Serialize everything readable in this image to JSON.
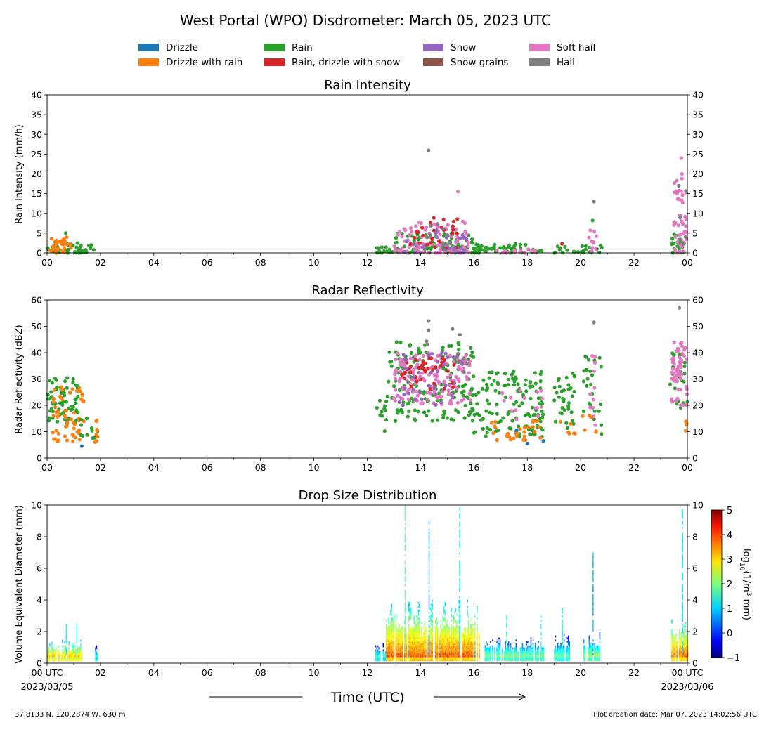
{
  "figure": {
    "title": "West Portal (WPO) Disdrometer: March 05, 2023 UTC",
    "footer_left": "37.8133 N, 120.2874 W, 630 m",
    "footer_right": "Plot creation date: Mar 07, 2023 14:02:56 UTC",
    "xlabel": "Time (UTC)",
    "date_start": "2023/03/05",
    "date_end": "2023/03/06",
    "colors": {
      "drizzle": "#1f77b4",
      "drizzle_with_rain": "#ff7f0e",
      "rain": "#2ca02c",
      "rain_drizzle_with_snow": "#d62728",
      "snow": "#9467bd",
      "snow_grains": "#8c564b",
      "soft_hail": "#e377c2",
      "hail": "#7f7f7f"
    }
  },
  "legend": {
    "placement": "top",
    "entries": [
      {
        "label": "Drizzle",
        "color": "#1f77b4"
      },
      {
        "label": "Drizzle with rain",
        "color": "#ff7f0e"
      },
      {
        "label": "Rain",
        "color": "#2ca02c"
      },
      {
        "label": "Rain, drizzle with snow",
        "color": "#d62728"
      },
      {
        "label": "Snow",
        "color": "#9467bd"
      },
      {
        "label": "Snow grains",
        "color": "#8c564b"
      },
      {
        "label": "Soft hail",
        "color": "#e377c2"
      },
      {
        "label": "Hail",
        "color": "#7f7f7f"
      }
    ]
  },
  "chart_data": [
    {
      "type": "scatter",
      "title": "Rain Intensity",
      "xlabel": "",
      "ylabel": "Rain Intensity (mm/h)",
      "xlim": [
        0,
        24
      ],
      "ylim": [
        0,
        40
      ],
      "yticks": [
        0,
        5,
        10,
        15,
        20,
        25,
        30,
        35,
        40
      ],
      "xtick_labels": [
        "00",
        "02",
        "04",
        "06",
        "08",
        "10",
        "12",
        "14",
        "16",
        "18",
        "20",
        "22",
        "00"
      ],
      "grid": false,
      "clusters": [
        {
          "series": "Rain",
          "x": [
            0.0,
            1.8
          ],
          "y": [
            0,
            2.5
          ],
          "n": 45
        },
        {
          "series": "Drizzle with rain",
          "x": [
            0.1,
            0.9
          ],
          "y": [
            0,
            4
          ],
          "n": 30
        },
        {
          "series": "Rain",
          "x": [
            12.3,
            13.0
          ],
          "y": [
            0,
            1.5
          ],
          "n": 15
        },
        {
          "series": "Rain",
          "x": [
            13.0,
            16.0
          ],
          "y": [
            0,
            5
          ],
          "n": 90
        },
        {
          "series": "Soft hail",
          "x": [
            13.0,
            15.9
          ],
          "y": [
            0,
            8
          ],
          "n": 110
        },
        {
          "series": "Rain, drizzle with snow",
          "x": [
            13.6,
            15.4
          ],
          "y": [
            1,
            9
          ],
          "n": 30
        },
        {
          "series": "Snow",
          "x": [
            13.2,
            15.8
          ],
          "y": [
            0,
            6
          ],
          "n": 30
        },
        {
          "series": "Hail",
          "x": [
            14.2,
            15.8
          ],
          "y": [
            2,
            9
          ],
          "n": 8
        },
        {
          "series": "Rain",
          "x": [
            16.0,
            18.6
          ],
          "y": [
            0,
            2.5
          ],
          "n": 60
        },
        {
          "series": "Soft hail",
          "x": [
            16.8,
            18.4
          ],
          "y": [
            0,
            1
          ],
          "n": 15
        },
        {
          "series": "Rain",
          "x": [
            19.0,
            20.8
          ],
          "y": [
            0,
            2
          ],
          "n": 25
        },
        {
          "series": "Soft hail",
          "x": [
            20.3,
            20.6
          ],
          "y": [
            0,
            6
          ],
          "n": 10
        },
        {
          "series": "Rain",
          "x": [
            23.4,
            23.9
          ],
          "y": [
            0,
            5
          ],
          "n": 20
        },
        {
          "series": "Soft hail",
          "x": [
            23.5,
            24.0
          ],
          "y": [
            0,
            20
          ],
          "n": 45
        },
        {
          "series": "Hail",
          "x": [
            23.6,
            23.95
          ],
          "y": [
            2,
            17
          ],
          "n": 6
        }
      ],
      "points": [
        {
          "series": "Hail",
          "x": 14.3,
          "y": 26
        },
        {
          "series": "Hail",
          "x": 20.5,
          "y": 13
        },
        {
          "series": "Rain",
          "x": 20.45,
          "y": 8.2
        },
        {
          "series": "Soft hail",
          "x": 23.78,
          "y": 24
        },
        {
          "series": "Soft hail",
          "x": 23.8,
          "y": 20
        },
        {
          "series": "Hail",
          "x": 23.68,
          "y": 17
        },
        {
          "series": "Soft hail",
          "x": 15.4,
          "y": 15.5
        },
        {
          "series": "Rain",
          "x": 0.7,
          "y": 5
        },
        {
          "series": "Rain, drizzle with snow",
          "x": 19.3,
          "y": 2.3
        }
      ]
    },
    {
      "type": "scatter",
      "title": "Radar Reflectivity",
      "xlabel": "",
      "ylabel": "Radar Reflectivity (dBZ)",
      "xlim": [
        0,
        24
      ],
      "ylim": [
        0,
        60
      ],
      "yticks": [
        0,
        10,
        20,
        30,
        40,
        50,
        60
      ],
      "xtick_labels": [
        "00",
        "02",
        "04",
        "06",
        "08",
        "10",
        "12",
        "14",
        "16",
        "18",
        "20",
        "22",
        "00"
      ],
      "grid": false,
      "clusters": [
        {
          "series": "Rain",
          "x": [
            0.0,
            1.2
          ],
          "y": [
            13,
            31
          ],
          "n": 70
        },
        {
          "series": "Drizzle with rain",
          "x": [
            0.2,
            1.4
          ],
          "y": [
            6,
            27
          ],
          "n": 60
        },
        {
          "series": "Rain",
          "x": [
            1.2,
            1.9
          ],
          "y": [
            7,
            16
          ],
          "n": 12
        },
        {
          "series": "Drizzle with rain",
          "x": [
            1.7,
            1.9
          ],
          "y": [
            6,
            18
          ],
          "n": 8
        },
        {
          "series": "Rain",
          "x": [
            12.3,
            12.8
          ],
          "y": [
            10,
            23
          ],
          "n": 10
        },
        {
          "series": "Rain",
          "x": [
            12.7,
            16.0
          ],
          "y": [
            14,
            44
          ],
          "n": 150
        },
        {
          "series": "Soft hail",
          "x": [
            13.0,
            15.9
          ],
          "y": [
            20,
            40
          ],
          "n": 170
        },
        {
          "series": "Rain, drizzle with snow",
          "x": [
            13.3,
            15.3
          ],
          "y": [
            26,
            38
          ],
          "n": 40
        },
        {
          "series": "Snow",
          "x": [
            13.2,
            15.6
          ],
          "y": [
            20,
            40
          ],
          "n": 40
        },
        {
          "series": "Hail",
          "x": [
            14.2,
            15.8
          ],
          "y": [
            30,
            48
          ],
          "n": 8
        },
        {
          "series": "Rain",
          "x": [
            15.8,
            16.4
          ],
          "y": [
            9,
            27
          ],
          "n": 18
        },
        {
          "series": "Rain",
          "x": [
            16.3,
            18.6
          ],
          "y": [
            8,
            33
          ],
          "n": 120
        },
        {
          "series": "Drizzle with rain",
          "x": [
            16.6,
            18.6
          ],
          "y": [
            6,
            15
          ],
          "n": 30
        },
        {
          "series": "Soft hail",
          "x": [
            17.0,
            18.6
          ],
          "y": [
            12,
            26
          ],
          "n": 15
        },
        {
          "series": "Rain",
          "x": [
            19.0,
            19.8
          ],
          "y": [
            11,
            33
          ],
          "n": 35
        },
        {
          "series": "Drizzle with rain",
          "x": [
            19.0,
            19.8
          ],
          "y": [
            9,
            14
          ],
          "n": 6
        },
        {
          "series": "Rain",
          "x": [
            20.1,
            20.8
          ],
          "y": [
            9,
            41
          ],
          "n": 25
        },
        {
          "series": "Soft hail",
          "x": [
            20.35,
            20.55
          ],
          "y": [
            12,
            40
          ],
          "n": 12
        },
        {
          "series": "Drizzle with rain",
          "x": [
            20.0,
            20.6
          ],
          "y": [
            9,
            17
          ],
          "n": 6
        },
        {
          "series": "Rain",
          "x": [
            23.3,
            24.0
          ],
          "y": [
            18,
            40
          ],
          "n": 25
        },
        {
          "series": "Soft hail",
          "x": [
            23.4,
            24.0
          ],
          "y": [
            20,
            44
          ],
          "n": 60
        },
        {
          "series": "Drizzle with rain",
          "x": [
            23.9,
            24.0
          ],
          "y": [
            10,
            15
          ],
          "n": 4
        }
      ],
      "points": [
        {
          "series": "Hail",
          "x": 14.3,
          "y": 52
        },
        {
          "series": "Hail",
          "x": 14.3,
          "y": 48.5
        },
        {
          "series": "Hail",
          "x": 15.2,
          "y": 49
        },
        {
          "series": "Hail",
          "x": 20.5,
          "y": 51.5
        },
        {
          "series": "Hail",
          "x": 23.7,
          "y": 57
        },
        {
          "series": "Drizzle",
          "x": 1.3,
          "y": 4.5
        },
        {
          "series": "Drizzle",
          "x": 18.0,
          "y": 5.5
        },
        {
          "series": "Drizzle",
          "x": 18.6,
          "y": 6.5
        },
        {
          "series": "Drizzle",
          "x": 17.6,
          "y": 10.5
        },
        {
          "series": "Rain",
          "x": 13.1,
          "y": 44
        }
      ]
    },
    {
      "type": "heatmap",
      "title": "Drop Size Distribution",
      "xlabel": "",
      "ylabel": "Volume Equivalent Diameter (mm)",
      "xlim": [
        0,
        24
      ],
      "ylim": [
        0,
        10
      ],
      "yticks": [
        0,
        2,
        4,
        6,
        8,
        10
      ],
      "xtick_labels": [
        "00 UTC",
        "02",
        "04",
        "06",
        "08",
        "10",
        "12",
        "14",
        "16",
        "18",
        "20",
        "22",
        "00 UTC"
      ],
      "colorbar": {
        "label": "log10(1/m3 mm)",
        "label_base": "log",
        "label_sub": "10",
        "label_mid": "(1/m",
        "label_sup": "3",
        "label_tail": " mm)",
        "range": [
          -1,
          5
        ],
        "ticks": [
          -1,
          0,
          1,
          2,
          3,
          4,
          5
        ],
        "colormap": "jet"
      },
      "blocks": [
        {
          "x": [
            0.0,
            1.3
          ],
          "dmax": 1.5,
          "intensity": 3.4
        },
        {
          "x": [
            1.8,
            1.9
          ],
          "dmax": 1.2,
          "intensity": 2.0
        },
        {
          "x": [
            12.3,
            12.7
          ],
          "dmax": 1.3,
          "intensity": 2.0
        },
        {
          "x": [
            12.7,
            16.2
          ],
          "dmax": 4.0,
          "intensity": 3.6
        },
        {
          "x": [
            16.4,
            18.6
          ],
          "dmax": 1.6,
          "intensity": 2.3
        },
        {
          "x": [
            19.0,
            19.6
          ],
          "dmax": 1.8,
          "intensity": 2.1
        },
        {
          "x": [
            20.1,
            20.7
          ],
          "dmax": 2.0,
          "intensity": 2.3
        },
        {
          "x": [
            23.4,
            24.0
          ],
          "dmax": 3.0,
          "intensity": 3.6
        }
      ],
      "spikes": [
        {
          "x": 13.4,
          "dmax": 10.0,
          "value": 1.8
        },
        {
          "x": 14.3,
          "dmax": 9.0,
          "value": 0.6
        },
        {
          "x": 15.45,
          "dmax": 10.0,
          "value": 1.0
        },
        {
          "x": 20.45,
          "dmax": 7.0,
          "value": 0.8
        },
        {
          "x": 23.8,
          "dmax": 10.0,
          "value": 1.0
        },
        {
          "x": 0.7,
          "dmax": 2.5,
          "value": 1.2
        },
        {
          "x": 1.1,
          "dmax": 2.5,
          "value": 1.2
        },
        {
          "x": 17.2,
          "dmax": 3.0,
          "value": 1.5
        },
        {
          "x": 18.5,
          "dmax": 3.0,
          "value": 1.5
        },
        {
          "x": 19.3,
          "dmax": 3.5,
          "value": 1.5
        }
      ]
    }
  ]
}
